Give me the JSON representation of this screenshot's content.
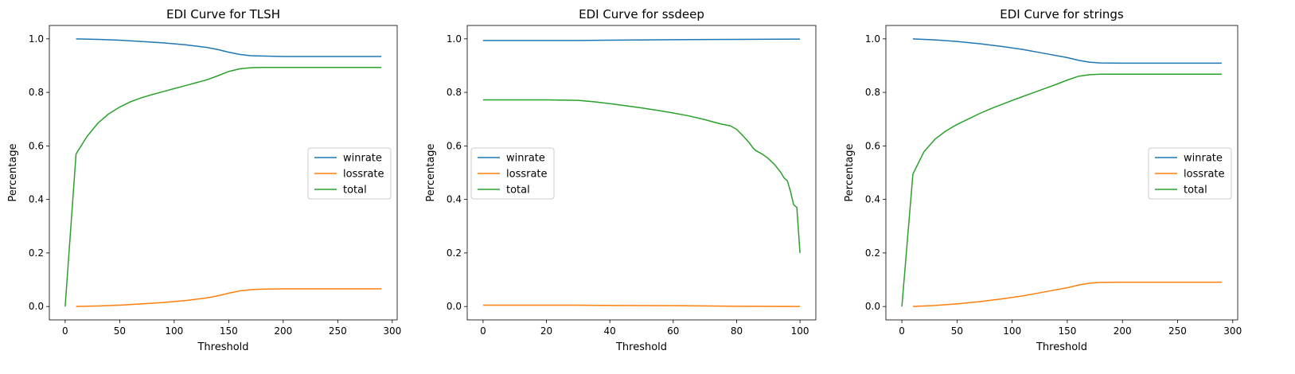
{
  "colors": {
    "winrate": "#1f77b4",
    "lossrate": "#ff7f0e",
    "total": "#2ca02c"
  },
  "chart_data": [
    {
      "type": "line",
      "title": "EDI Curve for TLSH",
      "xlabel": "Threshold",
      "ylabel": "Percentage",
      "xlim": [
        -14.5,
        304.5
      ],
      "ylim": [
        -0.05,
        1.05
      ],
      "xticks": [
        0,
        50,
        100,
        150,
        200,
        250,
        300
      ],
      "yticks": [
        0.0,
        0.2,
        0.4,
        0.6,
        0.8,
        1.0
      ],
      "legend": "center-right",
      "series": [
        {
          "name": "winrate",
          "color": "#1f77b4",
          "x": [
            10,
            30,
            50,
            70,
            90,
            110,
            130,
            140,
            150,
            160,
            170,
            180,
            200,
            250,
            290
          ],
          "y": [
            1.0,
            0.998,
            0.995,
            0.99,
            0.985,
            0.978,
            0.968,
            0.96,
            0.95,
            0.942,
            0.937,
            0.936,
            0.934,
            0.934,
            0.934
          ]
        },
        {
          "name": "lossrate",
          "color": "#ff7f0e",
          "x": [
            10,
            30,
            50,
            70,
            90,
            110,
            130,
            140,
            150,
            160,
            170,
            180,
            200,
            250,
            290
          ],
          "y": [
            0.0,
            0.002,
            0.005,
            0.01,
            0.015,
            0.022,
            0.032,
            0.04,
            0.05,
            0.058,
            0.063,
            0.065,
            0.066,
            0.066,
            0.066
          ]
        },
        {
          "name": "total",
          "color": "#2ca02c",
          "x": [
            0,
            10,
            20,
            30,
            40,
            50,
            60,
            70,
            80,
            90,
            100,
            110,
            120,
            130,
            140,
            150,
            160,
            170,
            180,
            200,
            250,
            290
          ],
          "y": [
            0.0,
            0.57,
            0.635,
            0.685,
            0.72,
            0.745,
            0.765,
            0.78,
            0.792,
            0.803,
            0.814,
            0.825,
            0.836,
            0.847,
            0.862,
            0.878,
            0.888,
            0.892,
            0.893,
            0.893,
            0.893,
            0.893
          ]
        }
      ]
    },
    {
      "type": "line",
      "title": "EDI Curve for ssdeep",
      "xlabel": "Threshold",
      "ylabel": "Percentage",
      "xlim": [
        -5,
        105
      ],
      "ylim": [
        -0.05,
        1.05
      ],
      "xticks": [
        0,
        20,
        40,
        60,
        80,
        100
      ],
      "yticks": [
        0.0,
        0.2,
        0.4,
        0.6,
        0.8,
        1.0
      ],
      "legend": "center-left",
      "series": [
        {
          "name": "winrate",
          "color": "#1f77b4",
          "x": [
            0,
            20,
            30,
            40,
            60,
            80,
            100
          ],
          "y": [
            0.994,
            0.994,
            0.994,
            0.995,
            0.997,
            0.998,
            0.999
          ]
        },
        {
          "name": "lossrate",
          "color": "#ff7f0e",
          "x": [
            0,
            20,
            30,
            40,
            60,
            80,
            100
          ],
          "y": [
            0.005,
            0.005,
            0.005,
            0.004,
            0.003,
            0.001,
            0.0
          ]
        },
        {
          "name": "total",
          "color": "#2ca02c",
          "x": [
            0,
            10,
            20,
            30,
            35,
            40,
            45,
            50,
            55,
            60,
            65,
            70,
            75,
            78,
            80,
            82,
            84,
            85,
            86,
            88,
            90,
            92,
            94,
            95,
            96,
            97,
            98,
            99,
            100
          ],
          "y": [
            0.772,
            0.772,
            0.772,
            0.77,
            0.765,
            0.758,
            0.75,
            0.742,
            0.733,
            0.723,
            0.712,
            0.698,
            0.682,
            0.675,
            0.662,
            0.638,
            0.612,
            0.595,
            0.583,
            0.57,
            0.553,
            0.53,
            0.5,
            0.48,
            0.47,
            0.43,
            0.38,
            0.37,
            0.2
          ]
        }
      ]
    },
    {
      "type": "line",
      "title": "EDI Curve for strings",
      "xlabel": "Threshold",
      "ylabel": "Percentage",
      "xlim": [
        -14.5,
        304.5
      ],
      "ylim": [
        -0.05,
        1.05
      ],
      "xticks": [
        0,
        50,
        100,
        150,
        200,
        250,
        300
      ],
      "yticks": [
        0.0,
        0.2,
        0.4,
        0.6,
        0.8,
        1.0
      ],
      "legend": "center-right",
      "series": [
        {
          "name": "winrate",
          "color": "#1f77b4",
          "x": [
            10,
            30,
            50,
            70,
            90,
            110,
            130,
            150,
            160,
            170,
            180,
            200,
            250,
            290
          ],
          "y": [
            1.0,
            0.996,
            0.99,
            0.982,
            0.972,
            0.96,
            0.945,
            0.93,
            0.92,
            0.913,
            0.91,
            0.909,
            0.909,
            0.909
          ]
        },
        {
          "name": "lossrate",
          "color": "#ff7f0e",
          "x": [
            10,
            30,
            50,
            70,
            90,
            110,
            130,
            150,
            160,
            170,
            180,
            200,
            250,
            290
          ],
          "y": [
            0.0,
            0.004,
            0.01,
            0.018,
            0.028,
            0.04,
            0.055,
            0.07,
            0.08,
            0.087,
            0.09,
            0.091,
            0.091,
            0.091
          ]
        },
        {
          "name": "total",
          "color": "#2ca02c",
          "x": [
            0,
            10,
            20,
            30,
            40,
            50,
            60,
            70,
            80,
            90,
            100,
            110,
            120,
            130,
            140,
            150,
            160,
            170,
            180,
            200,
            250,
            290
          ],
          "y": [
            0.0,
            0.495,
            0.578,
            0.625,
            0.656,
            0.68,
            0.7,
            0.72,
            0.738,
            0.754,
            0.77,
            0.785,
            0.8,
            0.815,
            0.83,
            0.846,
            0.86,
            0.866,
            0.868,
            0.868,
            0.868,
            0.868
          ]
        }
      ]
    }
  ]
}
